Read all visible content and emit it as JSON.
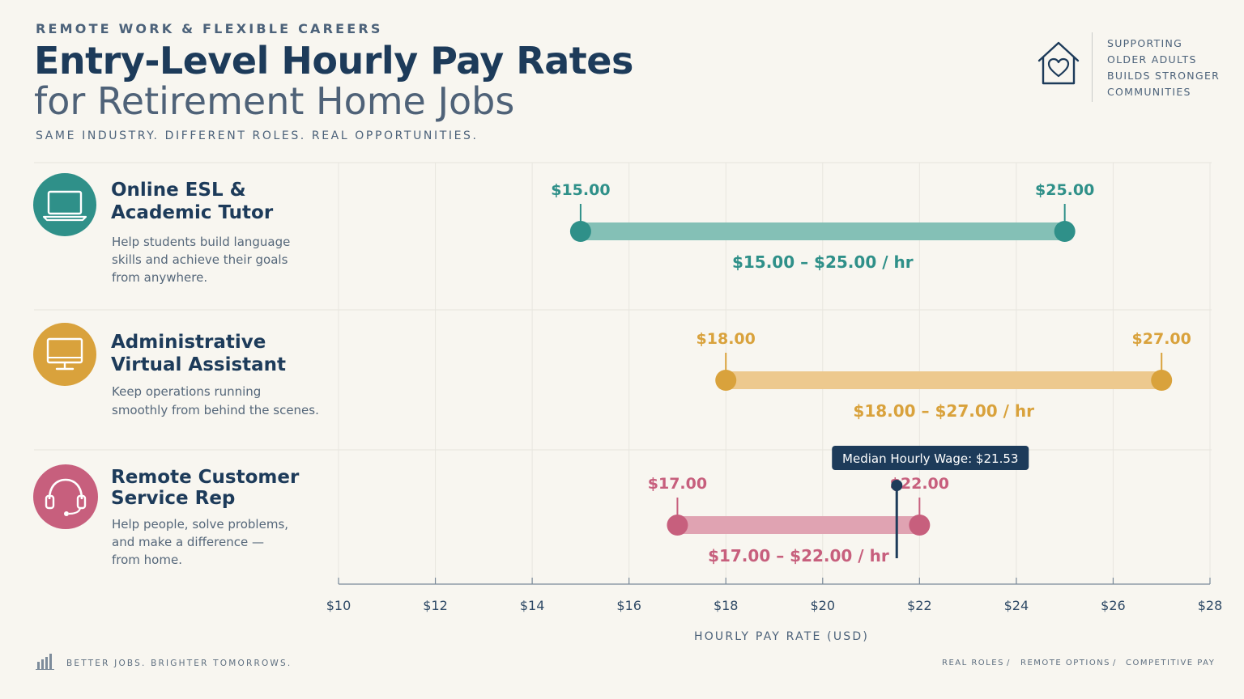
{
  "header": {
    "eyebrow": "REMOTE WORK & FLEXIBLE CAREERS",
    "title_line1": "Entry-Level Hourly Pay Rates",
    "title_line2": "for Retirement Home Jobs",
    "subtitle": "SAME INDUSTRY. DIFFERENT ROLES. REAL OPPORTUNITIES."
  },
  "badge": {
    "icon": "house-heart-icon",
    "lines": [
      "SUPPORTING",
      "OLDER ADULTS",
      "BUILDS STRONGER",
      "COMMUNITIES"
    ]
  },
  "roles": [
    {
      "icon": "laptop-icon",
      "color": "#2f9089",
      "name_lines": [
        "Online ESL &",
        "Academic Tutor"
      ],
      "desc_lines": [
        "Help students build language",
        "skills and achieve their goals",
        "from anywhere."
      ]
    },
    {
      "icon": "monitor-icon",
      "color": "#d9a23c",
      "name_lines": [
        "Administrative",
        "Virtual Assistant"
      ],
      "desc_lines": [
        "Keep operations running",
        "smoothly from behind the scenes."
      ]
    },
    {
      "icon": "headset-icon",
      "color": "#c75f7d",
      "name_lines": [
        "Remote Customer",
        "Service Rep"
      ],
      "desc_lines": [
        "Help people, solve problems,",
        "and make a difference —",
        "from home."
      ]
    }
  ],
  "chart_data": {
    "type": "range-bar",
    "xlabel": "HOURLY PAY RATE (USD)",
    "x_ticks": [
      10,
      12,
      14,
      16,
      18,
      20,
      22,
      24,
      26,
      28
    ],
    "x_tick_labels": [
      "$10",
      "$12",
      "$14",
      "$16",
      "$18",
      "$20",
      "$22",
      "$24",
      "$26",
      "$28"
    ],
    "series": [
      {
        "category": "Online ESL & Academic Tutor",
        "min": 15.0,
        "max": 25.0,
        "min_label": "$15.00",
        "max_label": "$25.00",
        "range_label": "$15.00 – $25.00 / hr",
        "color": "#2f9089",
        "bar_color": "#84c0b6"
      },
      {
        "category": "Administrative Virtual Assistant",
        "min": 18.0,
        "max": 27.0,
        "min_label": "$18.00",
        "max_label": "$27.00",
        "range_label": "$18.00 – $27.00 / hr",
        "color": "#d9a23c",
        "bar_color": "#edc98e"
      },
      {
        "category": "Remote Customer Service Rep",
        "min": 17.0,
        "max": 22.0,
        "min_label": "$17.00",
        "max_label": "$22.00",
        "range_label": "$17.00 – $22.00 / hr",
        "color": "#c75f7d",
        "bar_color": "#e0a3b2"
      }
    ],
    "annotation": {
      "label": "Median Hourly Wage: $21.53",
      "value": 21.53,
      "color": "#1d3b5a"
    },
    "grid": true
  },
  "footer": {
    "icon": "bar-chart-icon",
    "left": "BETTER JOBS. BRIGHTER TOMORROWS.",
    "right": [
      "REAL ROLES",
      "/",
      "REMOTE OPTIONS",
      "/",
      "COMPETITIVE PAY"
    ]
  }
}
